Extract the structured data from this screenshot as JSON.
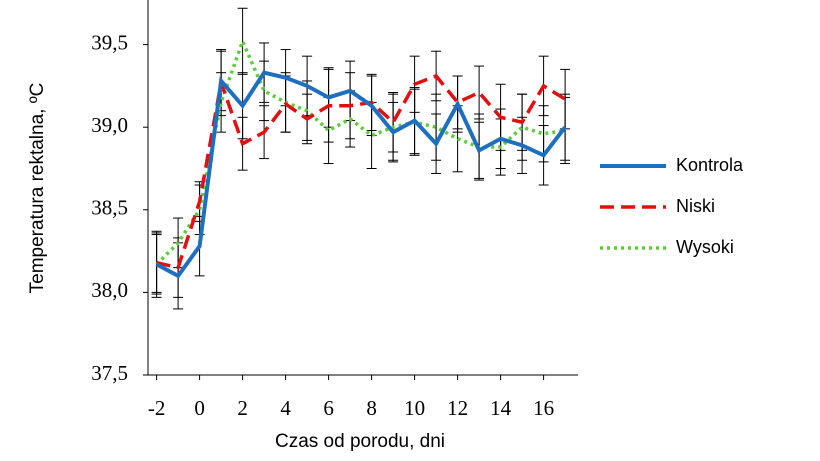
{
  "chart_data": {
    "type": "line",
    "x_label": "Czas od porodu, dni",
    "y_label": "Temperatura rektalna, ºC",
    "x": [
      -2,
      -1,
      0,
      1,
      2,
      3,
      4,
      5,
      6,
      7,
      8,
      9,
      10,
      11,
      12,
      13,
      14,
      15,
      16,
      17
    ],
    "xlim": [
      -2.4,
      17.6
    ],
    "xticks": [
      -2,
      0,
      2,
      4,
      6,
      8,
      10,
      12,
      14,
      16
    ],
    "ylim": [
      37.5,
      39.77
    ],
    "yticks": [
      {
        "value": 37.5,
        "label": "37,5"
      },
      {
        "value": 38.0,
        "label": "38,0"
      },
      {
        "value": 38.5,
        "label": "38,5"
      },
      {
        "value": 39.0,
        "label": "39,0"
      },
      {
        "value": 39.5,
        "label": "39,5"
      }
    ],
    "series": [
      {
        "name": "Kontrola",
        "color": "#1f6fc0",
        "dash": "solid",
        "values": [
          38.17,
          38.1,
          38.28,
          39.28,
          39.13,
          39.33,
          39.3,
          39.25,
          39.18,
          39.22,
          39.13,
          38.97,
          39.04,
          38.9,
          39.14,
          38.86,
          38.93,
          38.89,
          38.83,
          39.0
        ],
        "errors": [
          0.18,
          0.2,
          0.18,
          0.18,
          0.2,
          0.18,
          0.17,
          0.18,
          0.18,
          0.18,
          0.18,
          0.18,
          0.2,
          0.18,
          0.17,
          0.17,
          0.18,
          0.17,
          0.18,
          0.2
        ]
      },
      {
        "name": "Niski",
        "color": "#e01010",
        "dash": "dashed",
        "values": [
          38.18,
          38.15,
          38.55,
          39.27,
          38.9,
          38.97,
          39.14,
          39.05,
          39.13,
          39.13,
          39.15,
          39.03,
          39.26,
          39.31,
          39.15,
          39.21,
          39.06,
          39.03,
          39.25,
          39.17
        ],
        "errors": [
          0.18,
          0.18,
          0.12,
          0.2,
          0.16,
          0.16,
          0.17,
          0.15,
          0.22,
          0.2,
          0.17,
          0.18,
          0.17,
          0.15,
          0.16,
          0.16,
          0.2,
          0.17,
          0.18,
          0.18
        ]
      },
      {
        "name": "Wysoki",
        "color": "#5ccc3c",
        "dash": "dotted",
        "values": [
          38.17,
          38.3,
          38.5,
          39.15,
          39.52,
          39.22,
          39.15,
          39.1,
          38.98,
          39.05,
          38.95,
          39.0,
          39.03,
          39.0,
          38.93,
          38.88,
          38.88,
          39.0,
          38.96,
          38.98
        ],
        "errors": [
          0.2,
          0.15,
          0.15,
          0.18,
          0.2,
          0.18,
          0.18,
          0.18,
          0.2,
          0.17,
          0.2,
          0.2,
          0.2,
          0.2,
          0.2,
          0.2,
          0.17,
          0.2,
          0.17,
          0.2
        ]
      }
    ]
  }
}
